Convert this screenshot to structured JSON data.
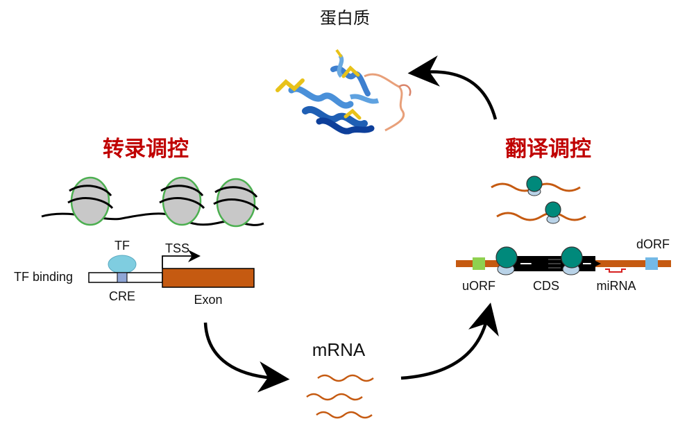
{
  "labels": {
    "protein": "蛋白质",
    "transcription_regulation": "转录调控",
    "translation_regulation": "翻译调控",
    "mrna": "mRNA",
    "tf": "TF",
    "tss": "TSS",
    "tf_binding": "TF binding",
    "cre": "CRE",
    "exon": "Exon",
    "dorf": "dORF",
    "uorf": "uORF",
    "cds": "CDS",
    "mirna": "miRNA"
  },
  "colors": {
    "title_red": "#c00000",
    "exon": "#c55a11",
    "mrna_strand": "#c55a11",
    "tf": "#7fcde0",
    "cre": "#8fa6d6",
    "nucleosome_fill": "#c8c8c8",
    "nucleosome_edge": "#4caf50",
    "ribosome_large": "#00897b",
    "ribosome_small": "#b9d3e8",
    "uorf": "#8fd14f",
    "dorf": "#74b9e6",
    "cds": "#000000",
    "mirna": "#d62020",
    "protein_blue": "#1f5fb4",
    "protein_yellow": "#e8c21a"
  }
}
